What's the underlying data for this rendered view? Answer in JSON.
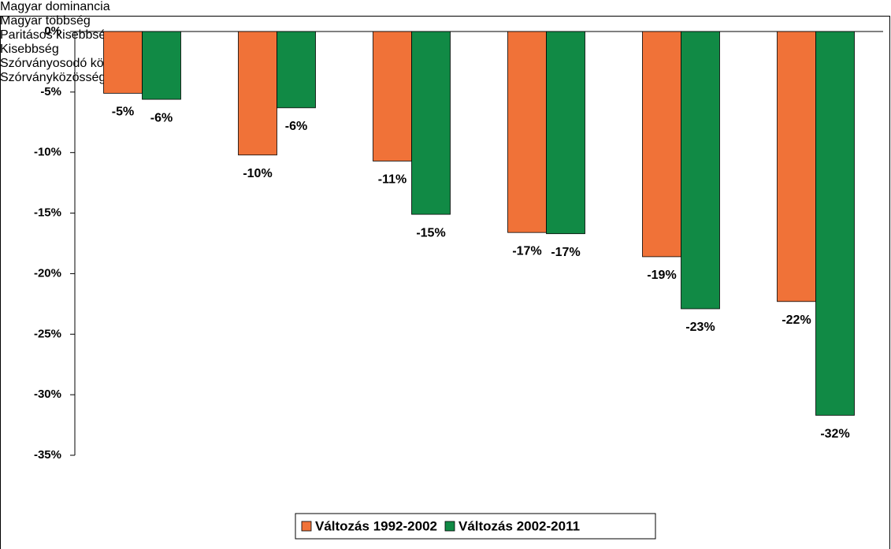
{
  "chart_data": {
    "type": "bar",
    "categories": [
      "Magyar dominancia",
      "Magyar többség",
      "Paritásos kisebbség",
      "Kisebbség",
      "Szórványosodó\nközösség",
      "Szórványközösség"
    ],
    "series": [
      {
        "name": "Változás 1992-2002",
        "color": "#f07238",
        "values": [
          -5.1,
          -10.2,
          -10.7,
          -16.6,
          -18.6,
          -22.3
        ],
        "value_labels": [
          "-5%",
          "-10%",
          "-11%",
          "-17%",
          "-19%",
          "-22%"
        ]
      },
      {
        "name": "Változás 2002-2011",
        "color": "#118a45",
        "values": [
          -5.6,
          -6.3,
          -15.1,
          -16.7,
          -22.9,
          -31.7
        ],
        "value_labels": [
          "-6%",
          "-6%",
          "-15%",
          "-17%",
          "-23%",
          "-32%"
        ]
      }
    ],
    "ylim": [
      -35,
      0
    ],
    "yticks": [
      {
        "value": 0,
        "label": "0%"
      },
      {
        "value": -5,
        "label": "-5%"
      },
      {
        "value": -10,
        "label": "-10%"
      },
      {
        "value": -15,
        "label": "-15%"
      },
      {
        "value": -20,
        "label": "-20%"
      },
      {
        "value": -25,
        "label": "-25%"
      },
      {
        "value": -30,
        "label": "-30%"
      },
      {
        "value": -35,
        "label": "-35%"
      }
    ],
    "legend": "bottom"
  }
}
